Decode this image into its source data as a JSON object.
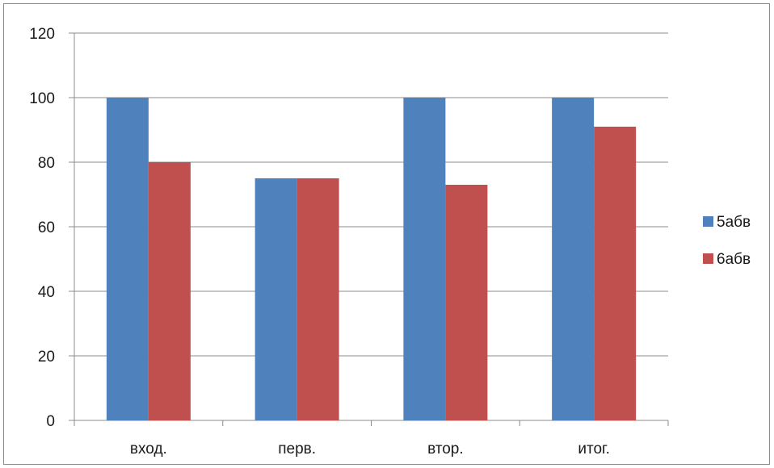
{
  "chart_data": {
    "type": "bar",
    "title": "",
    "xlabel": "",
    "ylabel": "",
    "categories": [
      "вход.",
      "перв.",
      "втор.",
      "итог."
    ],
    "series": [
      {
        "name": "5абв",
        "values": [
          100,
          75,
          100,
          100
        ],
        "color": "#4f81bd"
      },
      {
        "name": "6абв",
        "values": [
          80,
          75,
          73,
          91
        ],
        "color": "#c0504d"
      }
    ],
    "ylim": [
      0,
      120
    ],
    "yticks": [
      0,
      20,
      40,
      60,
      80,
      100,
      120
    ],
    "grid": true,
    "legend_position": "right"
  }
}
